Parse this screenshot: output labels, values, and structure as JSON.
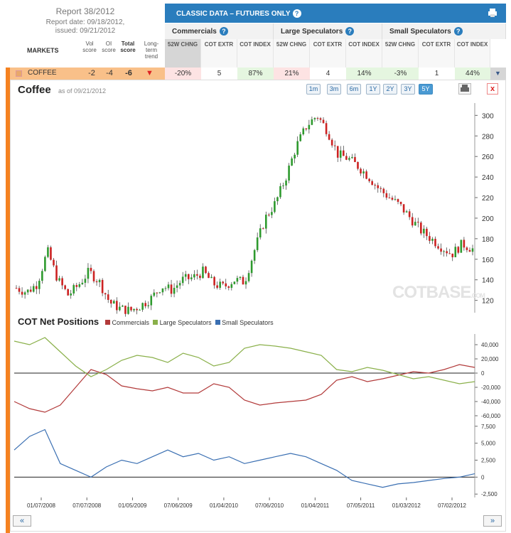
{
  "report": {
    "title": "Report 38/2012",
    "date": "Report date: 09/18/2012,",
    "issued": "issued: 09/21/2012"
  },
  "header": {
    "markets": "MARKETS",
    "vol": "Vol score",
    "oi": "OI score",
    "total": "Total score",
    "trend": "Long-term trend",
    "banner": "CLASSIC DATA – FUTURES ONLY",
    "groups": [
      "Commercials",
      "Large Speculators",
      "Small Speculators"
    ],
    "subcols": [
      "52W CHNG",
      "COT EXTR",
      "COT INDEX",
      "52W CHNG",
      "COT EXTR",
      "COT INDEX",
      "52W CHNG",
      "COT EXTR",
      "COT INDEX"
    ]
  },
  "row": {
    "name": "COFFEE",
    "vol": "-2",
    "oi": "-4",
    "total": "-6",
    "values": [
      "-20%",
      "5",
      "87%",
      "21%",
      "4",
      "14%",
      "-3%",
      "1",
      "44%"
    ],
    "colors": [
      "#fde3e3",
      "#ffffff",
      "#e5f6e0",
      "#fde3e3",
      "#ffffff",
      "#e5f6e0",
      "#e5f6e0",
      "#ffffff",
      "#e5f6e0"
    ]
  },
  "chart": {
    "title": "Coffee",
    "asof": "as of 09/21/2012",
    "ranges": [
      "1m",
      "3m",
      "6m",
      "1Y",
      "2Y",
      "3Y",
      "5Y"
    ],
    "active": "5Y",
    "watermark": "COTBASE",
    "watermark_small": ".COM"
  },
  "net": {
    "title": "COT Net Positions",
    "legend": [
      "Commercials",
      "Large Speculators",
      "Small Speculators"
    ]
  },
  "chart_data": [
    {
      "type": "candlestick",
      "title": "Coffee",
      "x_labels": [
        "01/07/2008",
        "07/07/2008",
        "01/05/2009",
        "07/06/2009",
        "01/04/2010",
        "07/06/2010",
        "01/04/2011",
        "07/05/2011",
        "01/03/2012",
        "07/02/2012"
      ],
      "yticks": [
        120,
        140,
        160,
        180,
        200,
        220,
        240,
        260,
        280,
        300
      ],
      "ylim": [
        108,
        312
      ],
      "close": [
        132,
        128,
        136,
        168,
        140,
        125,
        135,
        148,
        138,
        118,
        112,
        110,
        115,
        122,
        134,
        130,
        140,
        142,
        148,
        136,
        133,
        140,
        138,
        170,
        200,
        215,
        240,
        270,
        290,
        300,
        285,
        262,
        258,
        250,
        240,
        228,
        220,
        212,
        200,
        188,
        180,
        172,
        165,
        175,
        170
      ],
      "colors": {
        "up": "#2e9a2e",
        "down": "#cc2222"
      }
    },
    {
      "type": "line",
      "title": "COT Net Positions",
      "yticks": [
        40000,
        20000,
        0,
        -20000,
        -40000,
        -60000
      ],
      "ylim": [
        -70000,
        55000
      ],
      "series": [
        {
          "name": "Commercials",
          "color": "#b23a3a",
          "values": [
            -40000,
            -50000,
            -55000,
            -45000,
            -20000,
            5000,
            -2000,
            -18000,
            -22000,
            -25000,
            -20000,
            -28000,
            -28000,
            -15000,
            -20000,
            -38000,
            -45000,
            -42000,
            -40000,
            -38000,
            -30000,
            -10000,
            -5000,
            -12000,
            -8000,
            -3000,
            2000,
            0,
            5000,
            12000,
            8000
          ]
        },
        {
          "name": "Large Speculators",
          "color": "#8ab04a",
          "values": [
            45000,
            40000,
            50000,
            30000,
            10000,
            -5000,
            5000,
            18000,
            25000,
            22000,
            15000,
            28000,
            22000,
            10000,
            15000,
            35000,
            40000,
            38000,
            35000,
            30000,
            25000,
            5000,
            2000,
            8000,
            4000,
            -2000,
            -8000,
            -5000,
            -10000,
            -15000,
            -12000
          ]
        },
        {
          "name": "Small Speculators",
          "color": "#3a6fb2",
          "values": [
            4000,
            6000,
            7000,
            2000,
            1000,
            0,
            1500,
            2500,
            2000,
            3000,
            4000,
            3000,
            3500,
            2500,
            3000,
            2000,
            2500,
            3000,
            3500,
            3000,
            2000,
            1000,
            -500,
            -1000,
            -1500,
            -1000,
            -800,
            -500,
            -200,
            0,
            500
          ]
        }
      ]
    }
  ]
}
